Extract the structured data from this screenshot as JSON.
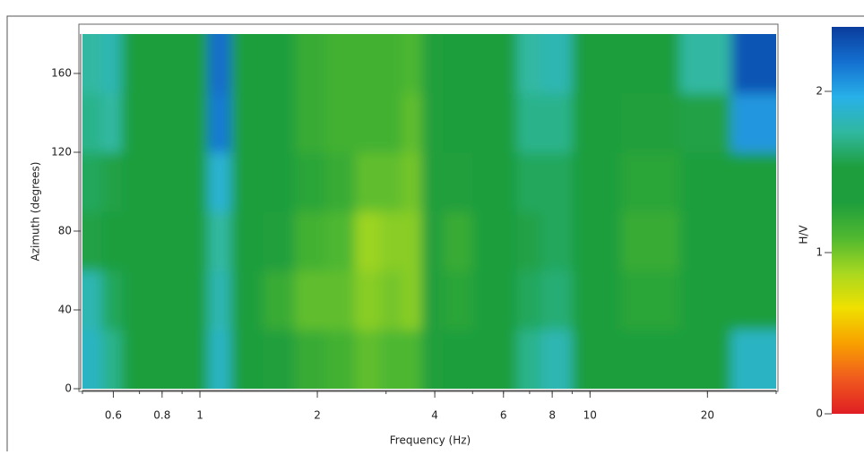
{
  "chart_data": {
    "type": "heatmap",
    "x_label": "Frequency (Hz)",
    "y_label": "Azimuth (degrees)",
    "colorbar_label": "H/V",
    "xscale": "log",
    "xlim": [
      0.5,
      30
    ],
    "xticks": [
      0.6,
      0.8,
      1,
      2,
      4,
      6,
      8,
      10,
      20
    ],
    "ylim": [
      0,
      180
    ],
    "yticks": [
      0,
      40,
      80,
      120,
      160
    ],
    "zlim": [
      0,
      2.4
    ],
    "zticks": [
      0,
      1,
      2
    ],
    "colormap": [
      "#e01e24",
      "#f05a1e",
      "#f8a000",
      "#f0e000",
      "#a8d820",
      "#50b830",
      "#1e9e3c",
      "#1e9e3c",
      "#30b8a0",
      "#28b0e8",
      "#1470d0",
      "#0a3c9c"
    ],
    "xbins": [
      0.5,
      0.56,
      0.63,
      0.75,
      0.95,
      1.05,
      1.2,
      1.45,
      1.75,
      2.1,
      2.5,
      2.9,
      3.3,
      3.7,
      4.2,
      5,
      6.5,
      7.5,
      9,
      12,
      17,
      23,
      30
    ],
    "ybins": [
      0,
      30,
      60,
      90,
      120,
      150,
      180
    ],
    "z": [
      [
        1.85,
        1.8,
        1.55,
        1.6,
        1.7,
        1.75
      ],
      [
        1.7,
        1.6,
        1.5,
        1.55,
        1.75,
        1.8
      ],
      [
        1.4,
        1.4,
        1.4,
        1.4,
        1.45,
        1.45
      ],
      [
        1.4,
        1.4,
        1.35,
        1.35,
        1.4,
        1.4
      ],
      [
        1.45,
        1.45,
        1.4,
        1.4,
        1.45,
        1.45
      ],
      [
        1.85,
        1.8,
        1.75,
        1.9,
        2.15,
        2.2
      ],
      [
        1.5,
        1.5,
        1.45,
        1.5,
        1.5,
        1.5
      ],
      [
        1.3,
        1.2,
        1.3,
        1.35,
        1.35,
        1.35
      ],
      [
        1.2,
        1.05,
        1.15,
        1.25,
        1.2,
        1.2
      ],
      [
        1.15,
        1.05,
        1.1,
        1.2,
        1.15,
        1.15
      ],
      [
        1.05,
        0.95,
        0.9,
        1.05,
        1.15,
        1.15
      ],
      [
        1.1,
        1.0,
        0.95,
        1.05,
        1.15,
        1.15
      ],
      [
        1.1,
        0.95,
        0.95,
        1.0,
        1.05,
        1.1
      ],
      [
        1.3,
        1.3,
        1.3,
        1.3,
        1.3,
        1.3
      ],
      [
        1.35,
        1.25,
        1.2,
        1.3,
        1.35,
        1.35
      ],
      [
        1.4,
        1.4,
        1.4,
        1.4,
        1.4,
        1.4
      ],
      [
        1.7,
        1.6,
        1.55,
        1.6,
        1.7,
        1.75
      ],
      [
        1.8,
        1.65,
        1.6,
        1.6,
        1.7,
        1.8
      ],
      [
        1.45,
        1.4,
        1.4,
        1.4,
        1.4,
        1.45
      ],
      [
        1.35,
        1.25,
        1.2,
        1.25,
        1.3,
        1.35
      ],
      [
        1.4,
        1.4,
        1.4,
        1.4,
        1.55,
        1.75
      ],
      [
        1.85,
        1.5,
        1.45,
        1.5,
        2.05,
        2.3
      ]
    ]
  }
}
